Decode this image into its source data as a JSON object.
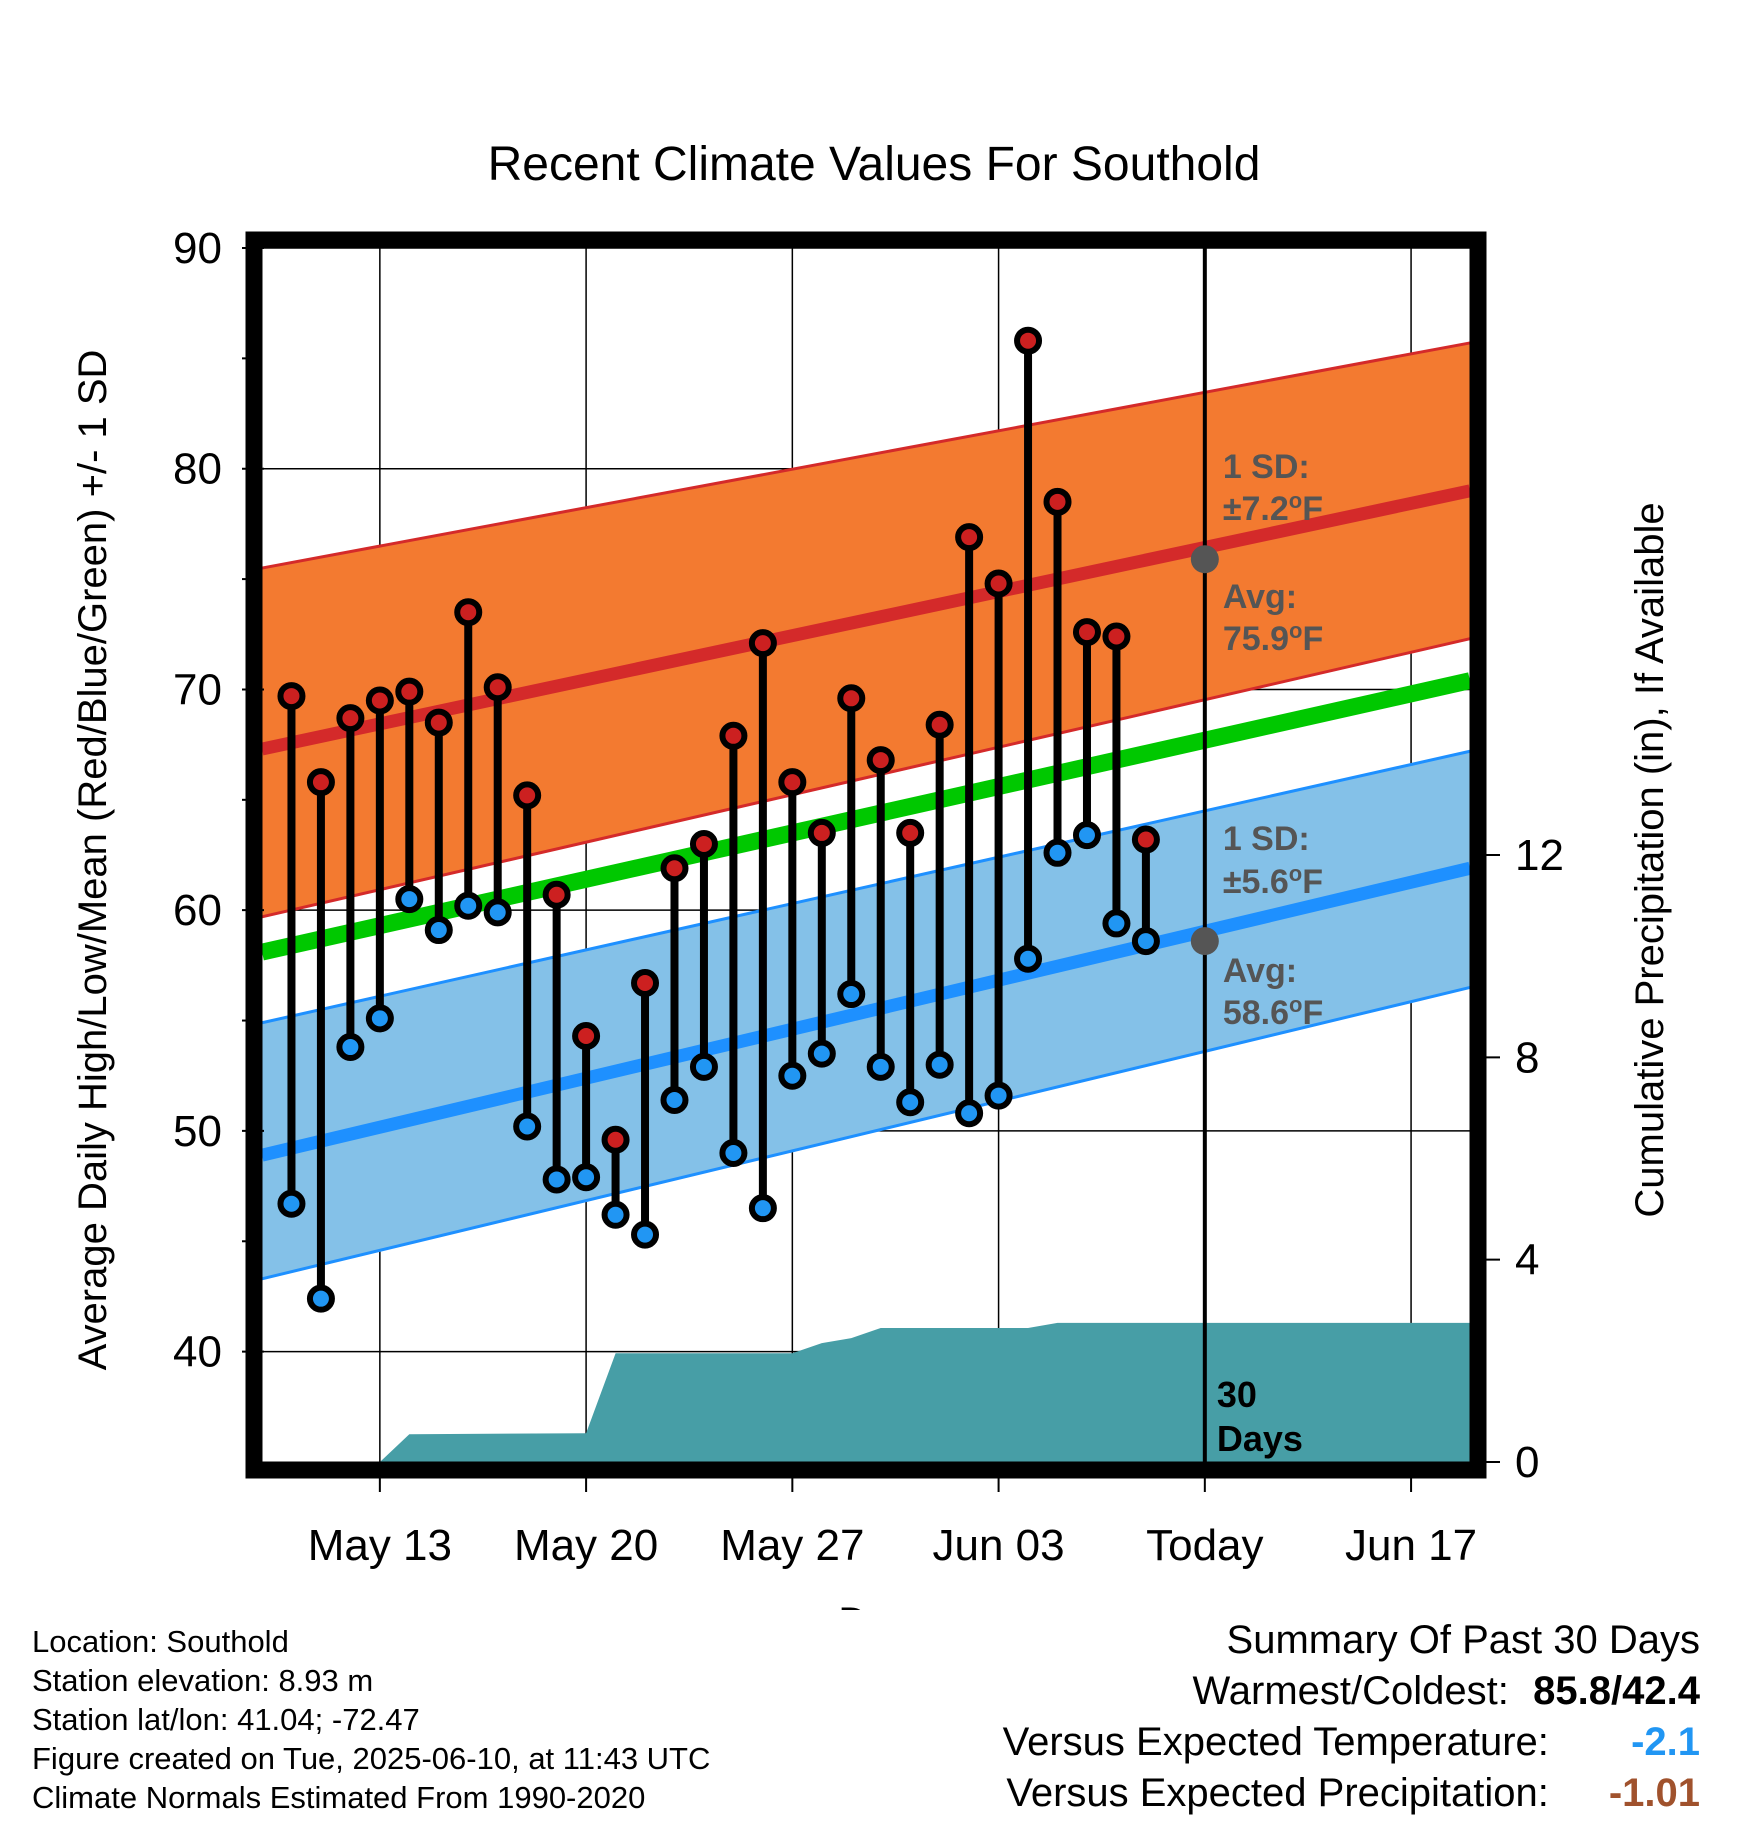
{
  "chart_data": {
    "type": "line",
    "title": "Recent Climate Values For Southold",
    "xlabel": "Day",
    "ylabel": "Average Daily High/Low/Mean (Red/Blue/Green) +/- 1 SD",
    "y2label": "Cumulative Precipitation (in), If Available",
    "ylim": [
      35,
      90
    ],
    "y2lim": [
      0,
      24
    ],
    "yticks": [
      40,
      50,
      60,
      70,
      80,
      90
    ],
    "y2ticks": [
      0,
      4,
      8,
      12
    ],
    "xlim": [
      "2025-05-09",
      "2025-06-19"
    ],
    "xticks": [
      {
        "date": "2025-05-13",
        "label": "May 13"
      },
      {
        "date": "2025-05-20",
        "label": "May 20"
      },
      {
        "date": "2025-05-27",
        "label": "May 27"
      },
      {
        "date": "2025-06-03",
        "label": "Jun 03"
      },
      {
        "date": "2025-06-10",
        "label": "Today"
      },
      {
        "date": "2025-06-17",
        "label": "Jun 17"
      }
    ],
    "today": "2025-06-10",
    "grid": true,
    "normals": {
      "high": {
        "start": 67.3,
        "end": 79.0,
        "sd_upper_start": 75.5,
        "sd_upper_end": 85.7,
        "sd_lower_start": 59.7,
        "sd_lower_end": 72.3
      },
      "low": {
        "start": 48.9,
        "end": 61.9,
        "sd_upper_start": 54.9,
        "sd_upper_end": 67.2,
        "sd_lower_start": 43.3,
        "sd_lower_end": 56.5
      },
      "mean": {
        "start": 58.1,
        "end": 70.4
      }
    },
    "observations": [
      {
        "date": "2025-05-10",
        "high": 69.7,
        "low": 46.7
      },
      {
        "date": "2025-05-11",
        "high": 65.8,
        "low": 42.4
      },
      {
        "date": "2025-05-12",
        "high": 68.7,
        "low": 53.8
      },
      {
        "date": "2025-05-13",
        "high": 69.5,
        "low": 55.1
      },
      {
        "date": "2025-05-14",
        "high": 69.9,
        "low": 60.5
      },
      {
        "date": "2025-05-15",
        "high": 68.5,
        "low": 59.1
      },
      {
        "date": "2025-05-16",
        "high": 73.5,
        "low": 60.2
      },
      {
        "date": "2025-05-17",
        "high": 70.1,
        "low": 59.9
      },
      {
        "date": "2025-05-18",
        "high": 65.2,
        "low": 50.2
      },
      {
        "date": "2025-05-19",
        "high": 60.7,
        "low": 47.8
      },
      {
        "date": "2025-05-20",
        "high": 54.3,
        "low": 47.9
      },
      {
        "date": "2025-05-21",
        "high": 49.6,
        "low": 46.2
      },
      {
        "date": "2025-05-22",
        "high": 56.7,
        "low": 45.3
      },
      {
        "date": "2025-05-23",
        "high": 61.9,
        "low": 51.4
      },
      {
        "date": "2025-05-24",
        "high": 63.0,
        "low": 52.9
      },
      {
        "date": "2025-05-25",
        "high": 67.9,
        "low": 49.0
      },
      {
        "date": "2025-05-26",
        "high": 72.1,
        "low": 46.5
      },
      {
        "date": "2025-05-27",
        "high": 65.8,
        "low": 52.5
      },
      {
        "date": "2025-05-28",
        "high": 63.5,
        "low": 53.5
      },
      {
        "date": "2025-05-29",
        "high": 69.6,
        "low": 56.2
      },
      {
        "date": "2025-05-30",
        "high": 66.8,
        "low": 52.9
      },
      {
        "date": "2025-05-31",
        "high": 63.5,
        "low": 51.3
      },
      {
        "date": "2025-06-01",
        "high": 68.4,
        "low": 53.0
      },
      {
        "date": "2025-06-02",
        "high": 76.9,
        "low": 50.8
      },
      {
        "date": "2025-06-03",
        "high": 74.8,
        "low": 51.6
      },
      {
        "date": "2025-06-04",
        "high": 85.8,
        "low": 57.8
      },
      {
        "date": "2025-06-05",
        "high": 78.5,
        "low": 62.6
      },
      {
        "date": "2025-06-06",
        "high": 72.6,
        "low": 63.4
      },
      {
        "date": "2025-06-07",
        "high": 72.4,
        "low": 59.4
      },
      {
        "date": "2025-06-08",
        "high": 63.2,
        "low": 58.6
      }
    ],
    "precipitation": [
      {
        "date": "2025-05-09",
        "value": 0.0
      },
      {
        "date": "2025-05-13",
        "value": 0.0
      },
      {
        "date": "2025-05-14",
        "value": 0.55
      },
      {
        "date": "2025-05-20",
        "value": 0.57
      },
      {
        "date": "2025-05-21",
        "value": 2.15
      },
      {
        "date": "2025-05-27",
        "value": 2.15
      },
      {
        "date": "2025-05-28",
        "value": 2.35
      },
      {
        "date": "2025-05-29",
        "value": 2.45
      },
      {
        "date": "2025-05-30",
        "value": 2.65
      },
      {
        "date": "2025-06-04",
        "value": 2.65
      },
      {
        "date": "2025-06-05",
        "value": 2.75
      },
      {
        "date": "2025-06-19",
        "value": 2.75
      }
    ],
    "annotations": {
      "high_sd_label": "1 SD:",
      "high_sd_value": "±7.2",
      "high_avg_label": "Avg:",
      "high_avg_value": "75.9",
      "high_avg_at_today": 75.9,
      "low_sd_label": "1 SD:",
      "low_sd_value": "±5.6",
      "low_avg_label": "Avg:",
      "low_avg_value": "58.6",
      "low_avg_at_today": 58.6,
      "degree_symbol": "o",
      "unit": "F",
      "days_count": "30",
      "days_label": "Days"
    },
    "colors": {
      "high_band": "#f37a30",
      "high_line": "#d42a2a",
      "low_band": "#84c1e8",
      "low_line": "#1e90ff",
      "mean_line": "#00c800",
      "precip": "#479ea6",
      "high_marker": "#cc2020",
      "low_marker": "#2196f3",
      "avg_marker": "#555555"
    }
  },
  "info": {
    "location": "Location: Southold",
    "elevation": "Station elevation: 8.93 m",
    "latlon": "Station lat/lon: 41.04; -72.47",
    "created": "Figure created on Tue, 2025-06-10, at 11:43 UTC",
    "normals": "Climate Normals Estimated From 1990-2020"
  },
  "summary": {
    "heading": "Summary Of Past 30 Days",
    "warm_cold_label": "Warmest/Coldest:",
    "warm_cold_value": "85.8/42.4",
    "temp_label": "Versus Expected Temperature:",
    "temp_value": "-2.1",
    "temp_color": "#2196f3",
    "precip_label": "Versus Expected Precipitation:",
    "precip_value": "-1.01",
    "precip_color": "#a0522d"
  }
}
